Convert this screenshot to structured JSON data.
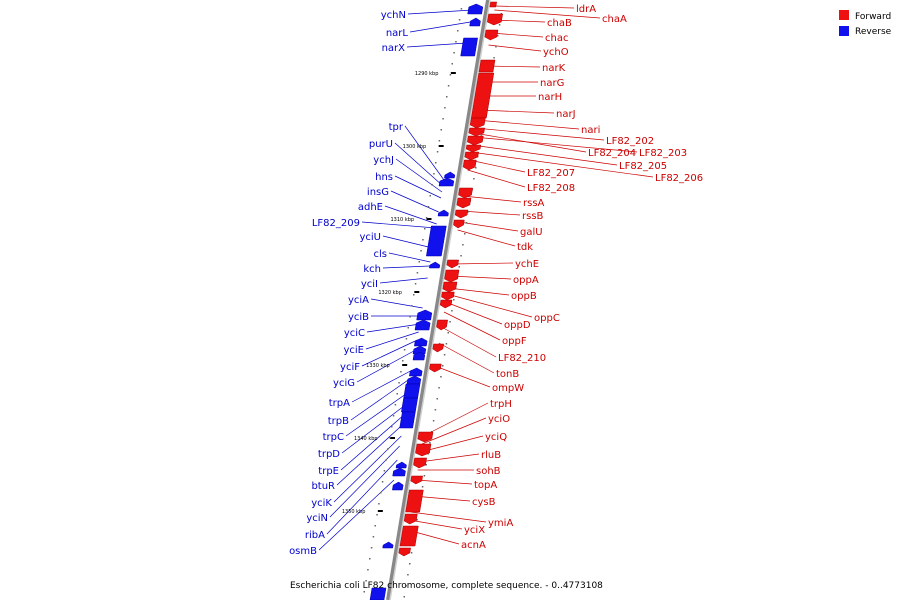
{
  "colors": {
    "forward": "#ee1111",
    "reverse": "#1111ee",
    "forward_label": "#cc0000",
    "reverse_label": "#0000cc",
    "backbone": "#888888"
  },
  "legend": {
    "forward": "Forward",
    "reverse": "Reverse"
  },
  "caption": "Escherichia coli LF82 chromosome, complete sequence. - 0..4773108",
  "ticks": [
    "1290 kbp",
    "1300 kbp",
    "1310 kbp",
    "1320 kbp",
    "1330 kbp",
    "1340 kbp",
    "1350 kbp"
  ],
  "forward_genes": [
    "ldrA",
    "chaA",
    "chaB",
    "chac",
    "ychO",
    "narK",
    "narG",
    "narH",
    "narJ",
    "nari",
    "LF82_202",
    "LF82_204",
    "LF82_203",
    "LF82_205",
    "LF82_206",
    "LF82_207",
    "LF82_208",
    "rssA",
    "rssB",
    "galU",
    "tdk",
    "ychE",
    "oppA",
    "oppB",
    "oppC",
    "oppD",
    "oppF",
    "LF82_210",
    "tonB",
    "ompW",
    "trpH",
    "yciO",
    "yciQ",
    "rluB",
    "sohB",
    "topA",
    "cysB",
    "ymiA",
    "yciX",
    "acnA"
  ],
  "reverse_genes": [
    "ychN",
    "narL",
    "narX",
    "tpr",
    "purU",
    "ychJ",
    "hns",
    "insG",
    "adhE",
    "LF82_209",
    "yciU",
    "cls",
    "kch",
    "yciI",
    "yciA",
    "yciB",
    "yciC",
    "yciE",
    "yciF",
    "yciG",
    "trpA",
    "trpB",
    "trpC",
    "trpD",
    "trpE",
    "btuR",
    "yciK",
    "yciN",
    "ribA",
    "osmB"
  ]
}
